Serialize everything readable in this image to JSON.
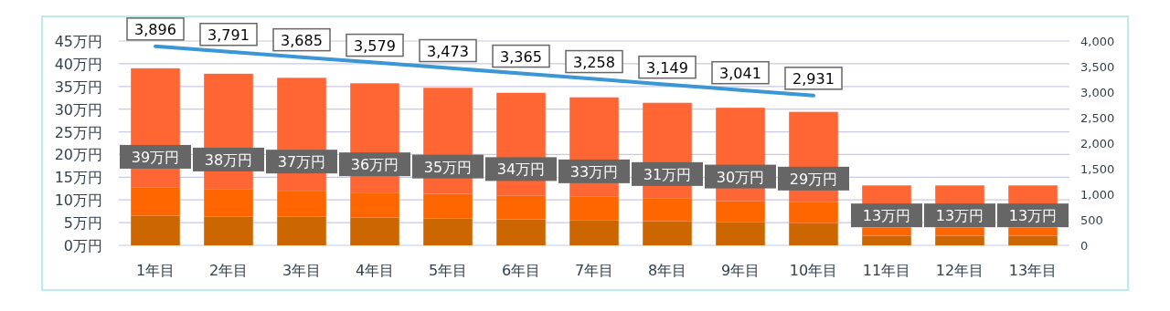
{
  "chart_data": {
    "type": "bar",
    "stacked": true,
    "grid": "y",
    "categories": [
      "1年目",
      "2年目",
      "3年目",
      "4年目",
      "5年目",
      "6年目",
      "7年目",
      "8年目",
      "9年目",
      "10年目",
      "11年目",
      "12年目",
      "13年目"
    ],
    "series": [
      {
        "color": "#cc6600",
        "values": [
          6.5,
          6.3,
          6.3,
          6.1,
          5.9,
          5.7,
          5.5,
          5.3,
          5.1,
          4.9,
          2.1,
          2.1,
          2.1
        ]
      },
      {
        "color": "#ff6600",
        "values": [
          6.3,
          6.0,
          5.6,
          5.5,
          5.4,
          5.2,
          5.2,
          5.0,
          4.6,
          4.6,
          1.8,
          1.8,
          1.8
        ]
      },
      {
        "color": "#ff6633",
        "values": [
          26.2,
          25.5,
          25.0,
          24.1,
          23.4,
          22.7,
          21.9,
          21.1,
          20.6,
          19.9,
          9.3,
          9.3,
          9.3
        ]
      },
      {
        "type": "line",
        "axis": "y2",
        "color": "#3a96d4",
        "values": [
          3896,
          3791,
          3685,
          3579,
          3473,
          3365,
          3258,
          3149,
          3041,
          2931,
          null,
          null,
          null
        ],
        "value_labels": [
          "3,896",
          "3,791",
          "3,685",
          "3,579",
          "3,473",
          "3,365",
          "3,258",
          "3,149",
          "3,041",
          "2,931",
          null,
          null,
          null
        ]
      }
    ],
    "totals": [
      "39万円",
      "38万円",
      "37万円",
      "36万円",
      "35万円",
      "34万円",
      "33万円",
      "31万円",
      "30万円",
      "29万円",
      "13万円",
      "13万円",
      "13万円"
    ],
    "ylim": [
      0,
      45
    ],
    "yticks": [
      {
        "value": 0,
        "label": "0万円"
      },
      {
        "value": 5,
        "label": "5万円"
      },
      {
        "value": 10,
        "label": "10万円"
      },
      {
        "value": 15,
        "label": "15万円"
      },
      {
        "value": 20,
        "label": "20万円"
      },
      {
        "value": 25,
        "label": "25万円"
      },
      {
        "value": 30,
        "label": "30万円"
      },
      {
        "value": 35,
        "label": "35万円"
      },
      {
        "value": 40,
        "label": "40万円"
      },
      {
        "value": 45,
        "label": "45万円"
      }
    ],
    "y2lim": [
      0,
      4000
    ],
    "y2ticks": [
      0,
      500,
      {
        "value": 1000,
        "label": "1,000"
      },
      {
        "value": 1500,
        "label": "1,500"
      },
      {
        "value": 2000,
        "label": "2,000"
      },
      {
        "value": 2500,
        "label": "2,500"
      },
      {
        "value": 3000,
        "label": "3,000"
      },
      {
        "value": 3500,
        "label": "3,500"
      },
      {
        "value": 4000,
        "label": "4,000"
      }
    ]
  }
}
